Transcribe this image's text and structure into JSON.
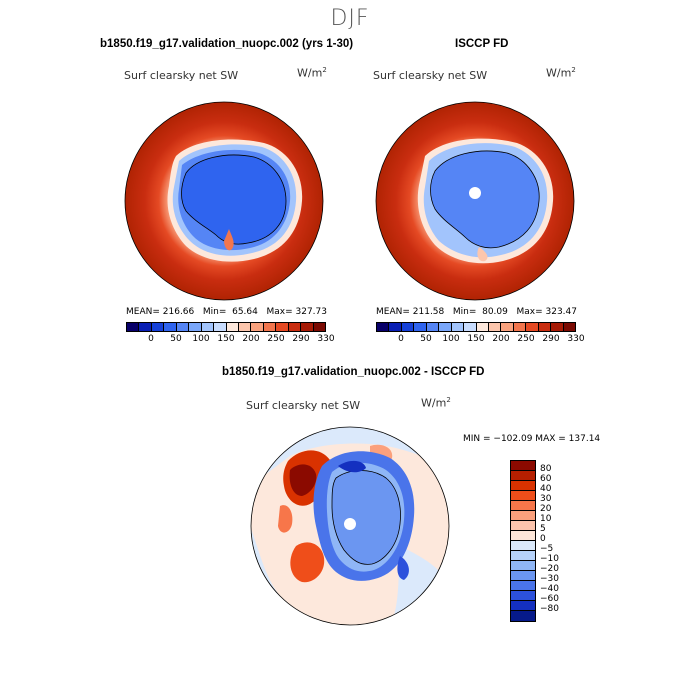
{
  "page": {
    "season": "DJF"
  },
  "panels": {
    "left": {
      "title": "b1850.f19_g17.validation_nuopc.002 (yrs 1-30)",
      "variable": "Surf clearsky net SW",
      "units": "W/m",
      "units_sup": "2",
      "mean_label": "MEAN=",
      "mean": "216.66",
      "min_label": "Min=",
      "min": "65.64",
      "max_label": "Max=",
      "max": "327.73"
    },
    "right": {
      "title": "ISCCP FD",
      "variable": "Surf clearsky net SW",
      "units": "W/m",
      "units_sup": "2",
      "mean_label": "MEAN=",
      "mean": "211.58",
      "min_label": "Min=",
      "min": "80.09",
      "max_label": "Max=",
      "max": "323.47"
    },
    "diff": {
      "title": "b1850.f19_g17.validation_nuopc.002 - ISCCP FD",
      "variable": "Surf clearsky net SW",
      "units": "W/m",
      "units_sup": "2",
      "minmax": "MIN = −102.09  MAX = 137.14"
    }
  },
  "abs_colorbar": {
    "colors": [
      "#08006a",
      "#0a1fb4",
      "#1540d8",
      "#2f64ef",
      "#5585f5",
      "#7aa7fa",
      "#a2c4fc",
      "#c8dcfd",
      "#fde8dc",
      "#fcc6ad",
      "#f9a27e",
      "#f2764e",
      "#e54a24",
      "#c92d10",
      "#a71b06",
      "#7a0a02"
    ],
    "ticks": [
      "0",
      "50",
      "100",
      "150",
      "200",
      "250",
      "290",
      "330"
    ]
  },
  "diff_colorbar": {
    "colors": [
      "#8b0a00",
      "#b51f00",
      "#d93200",
      "#ef4e1a",
      "#f7764a",
      "#fba07c",
      "#fcc4ad",
      "#fde6d9",
      "#dbe9fb",
      "#b6d2fa",
      "#8fb6f6",
      "#6b96f1",
      "#4a74ea",
      "#2c51dc",
      "#1430c0",
      "#061a8a"
    ],
    "ticks": [
      "80",
      "60",
      "40",
      "30",
      "20",
      "10",
      "5",
      "0",
      "−5",
      "−10",
      "−20",
      "−30",
      "−40",
      "−60",
      "−80"
    ]
  }
}
